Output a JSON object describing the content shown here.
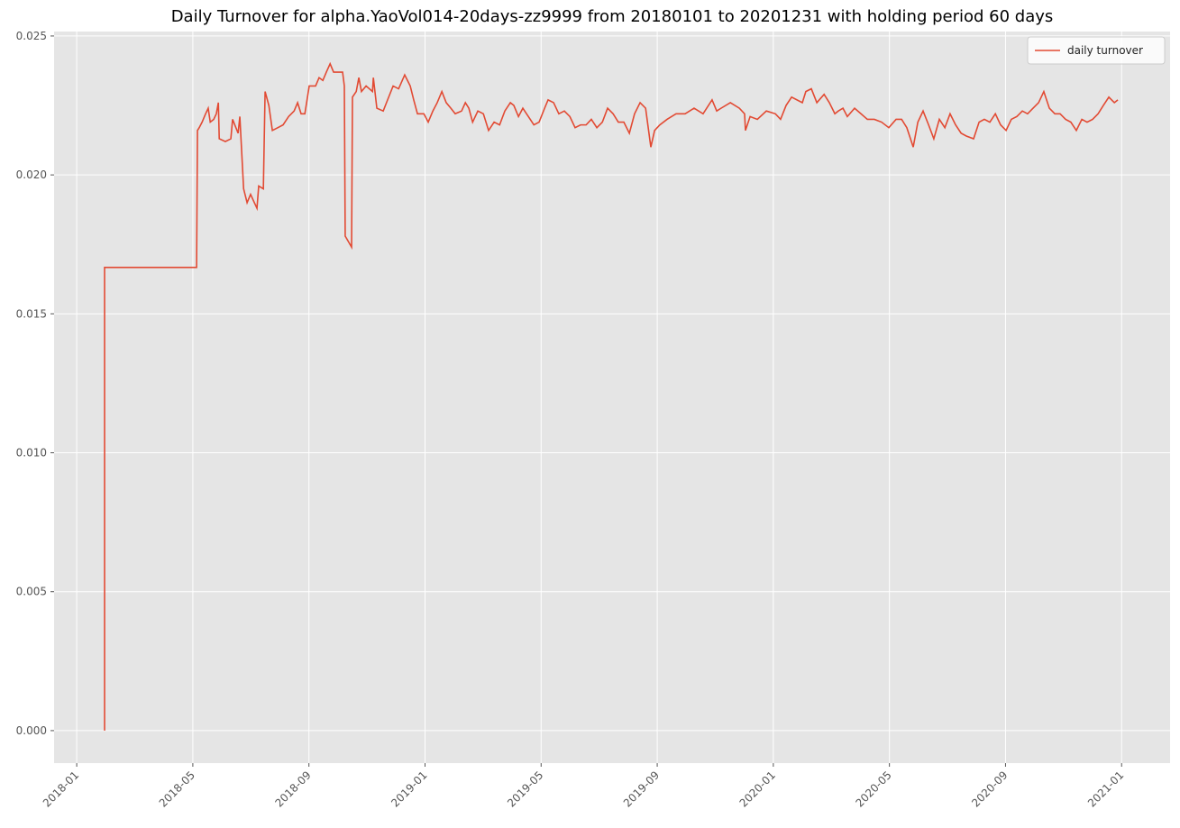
{
  "chart_data": {
    "type": "line",
    "title": "Daily Turnover for alpha.YaoVol014-20days-zz9999 from 20180101 to 20201231 with holding period 60 days",
    "x": [
      0.96,
      0.96,
      4.13,
      4.16,
      4.22,
      4.32,
      4.44,
      4.53,
      4.6,
      4.72,
      4.81,
      4.88,
      4.91,
      5.12,
      5.31,
      5.37,
      5.56,
      5.62,
      5.75,
      5.87,
      5.99,
      6.12,
      6.21,
      6.27,
      6.43,
      6.49,
      6.62,
      6.74,
      6.93,
      7.11,
      7.3,
      7.49,
      7.61,
      7.73,
      7.86,
      8.01,
      8.23,
      8.35,
      8.48,
      8.6,
      8.73,
      8.85,
      9.16,
      9.22,
      9.25,
      9.47,
      9.5,
      9.63,
      9.72,
      9.81,
      9.97,
      10.19,
      10.22,
      10.34,
      10.56,
      10.71,
      10.9,
      11.09,
      11.3,
      11.49,
      11.61,
      11.74,
      11.96,
      12.11,
      12.27,
      12.42,
      12.58,
      12.73,
      12.89,
      13.04,
      13.26,
      13.39,
      13.51,
      13.64,
      13.82,
      14.01,
      14.19,
      14.38,
      14.57,
      14.75,
      14.94,
      15.06,
      15.22,
      15.37,
      15.56,
      15.75,
      15.93,
      16.12,
      16.24,
      16.43,
      16.61,
      16.8,
      16.99,
      17.17,
      17.36,
      17.55,
      17.73,
      17.92,
      18.11,
      18.29,
      18.48,
      18.66,
      18.85,
      19.04,
      19.22,
      19.41,
      19.6,
      19.78,
      19.91,
      20.09,
      20.34,
      20.65,
      20.96,
      21.27,
      21.58,
      21.89,
      22.05,
      22.2,
      22.52,
      22.83,
      23.01,
      23.04,
      23.2,
      23.45,
      23.76,
      24.07,
      24.25,
      24.44,
      24.63,
      25.0,
      25.12,
      25.31,
      25.5,
      25.75,
      25.93,
      26.12,
      26.24,
      26.4,
      26.55,
      26.8,
      27.02,
      27.24,
      27.48,
      27.73,
      27.98,
      28.23,
      28.42,
      28.6,
      28.82,
      28.98,
      29.16,
      29.35,
      29.53,
      29.72,
      29.91,
      30.09,
      30.28,
      30.47,
      30.65,
      30.9,
      31.09,
      31.27,
      31.46,
      31.65,
      31.83,
      32.02,
      32.2,
      32.39,
      32.58,
      32.76,
      32.95,
      33.14,
      33.32,
      33.51,
      33.7,
      33.88,
      34.07,
      34.25,
      34.44,
      34.63,
      34.81,
      35.0,
      35.19,
      35.37,
      35.56,
      35.75,
      35.87
    ],
    "series": [
      {
        "name": "daily turnover",
        "color": "#e24a33",
        "values": [
          0,
          0.01667,
          0.01667,
          0.0216,
          0.0217,
          0.0219,
          0.0222,
          0.0224,
          0.0219,
          0.022,
          0.0222,
          0.0226,
          0.0213,
          0.0212,
          0.0213,
          0.022,
          0.0215,
          0.0221,
          0.0195,
          0.019,
          0.0193,
          0.019,
          0.0188,
          0.0196,
          0.0195,
          0.023,
          0.0225,
          0.0216,
          0.0217,
          0.0218,
          0.0221,
          0.0223,
          0.0226,
          0.0222,
          0.0222,
          0.0232,
          0.0232,
          0.0235,
          0.0234,
          0.0237,
          0.024,
          0.0237,
          0.0237,
          0.0232,
          0.0178,
          0.0174,
          0.0228,
          0.023,
          0.0235,
          0.023,
          0.0232,
          0.023,
          0.0235,
          0.0224,
          0.0223,
          0.0227,
          0.0232,
          0.0231,
          0.0236,
          0.0232,
          0.0227,
          0.0222,
          0.0222,
          0.0219,
          0.0223,
          0.0226,
          0.023,
          0.0226,
          0.0224,
          0.0222,
          0.0223,
          0.0226,
          0.0224,
          0.0219,
          0.0223,
          0.0222,
          0.0216,
          0.0219,
          0.0218,
          0.0223,
          0.0226,
          0.0225,
          0.0221,
          0.0224,
          0.0221,
          0.0218,
          0.0219,
          0.0224,
          0.0227,
          0.0226,
          0.0222,
          0.0223,
          0.0221,
          0.0217,
          0.0218,
          0.0218,
          0.022,
          0.0217,
          0.0219,
          0.0224,
          0.0222,
          0.0219,
          0.0219,
          0.0215,
          0.0222,
          0.0226,
          0.0224,
          0.021,
          0.0216,
          0.0218,
          0.022,
          0.0222,
          0.0222,
          0.0224,
          0.0222,
          0.0227,
          0.0223,
          0.0224,
          0.0226,
          0.0224,
          0.0222,
          0.0216,
          0.0221,
          0.022,
          0.0223,
          0.0222,
          0.022,
          0.0225,
          0.0228,
          0.0226,
          0.023,
          0.0231,
          0.0226,
          0.0229,
          0.0226,
          0.0222,
          0.0223,
          0.0224,
          0.0221,
          0.0224,
          0.0222,
          0.022,
          0.022,
          0.0219,
          0.0217,
          0.022,
          0.022,
          0.0217,
          0.021,
          0.0219,
          0.0223,
          0.0218,
          0.0213,
          0.022,
          0.0217,
          0.0222,
          0.0218,
          0.0215,
          0.0214,
          0.0213,
          0.0219,
          0.022,
          0.0219,
          0.0222,
          0.0218,
          0.0216,
          0.022,
          0.0221,
          0.0223,
          0.0222,
          0.0224,
          0.0226,
          0.023,
          0.0224,
          0.0222,
          0.0222,
          0.022,
          0.0219,
          0.0216,
          0.022,
          0.0219,
          0.022,
          0.0222,
          0.0225,
          0.0228,
          0.0226,
          0.0227
        ]
      }
    ],
    "xlim": [
      -0.78,
      37.67
    ],
    "xticks": [
      {
        "value": 0,
        "label": "2018-01"
      },
      {
        "value": 4,
        "label": "2018-05"
      },
      {
        "value": 8,
        "label": "2018-09"
      },
      {
        "value": 12,
        "label": "2019-01"
      },
      {
        "value": 16,
        "label": "2019-05"
      },
      {
        "value": 20,
        "label": "2019-09"
      },
      {
        "value": 24,
        "label": "2020-01"
      },
      {
        "value": 28,
        "label": "2020-05"
      },
      {
        "value": 32,
        "label": "2020-09"
      },
      {
        "value": 36,
        "label": "2021-01"
      }
    ],
    "ylim": [
      -0.00117,
      0.02516
    ],
    "yticks": [
      {
        "value": 0,
        "label": "0.000"
      },
      0.005,
      {
        "value": 0.01,
        "label": "0.010"
      },
      0.015,
      {
        "value": 0.02,
        "label": "0.020"
      },
      0.025
    ],
    "grid": true,
    "legend": "upper right"
  }
}
